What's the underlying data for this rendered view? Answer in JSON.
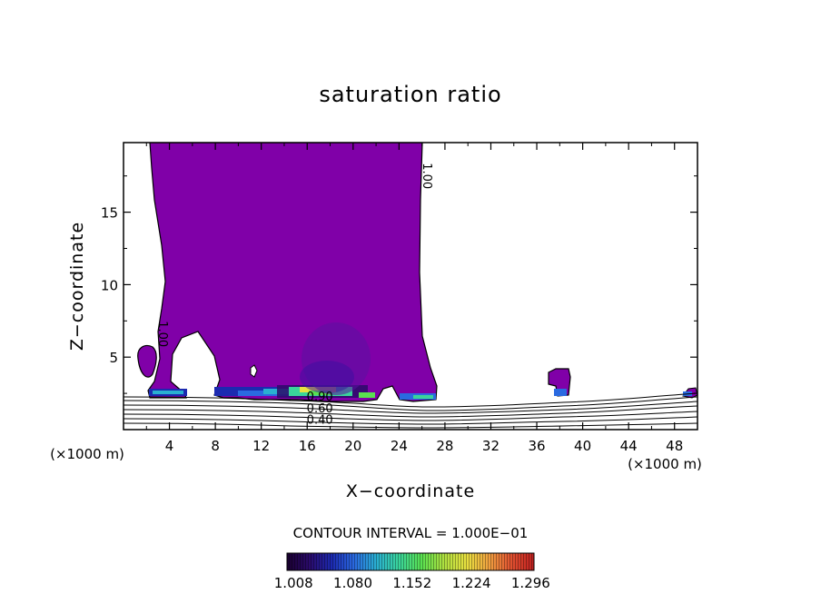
{
  "chart_data": {
    "type": "heatmap",
    "title": "saturation ratio",
    "xlabel": "X−coordinate",
    "ylabel": "Z−coordinate",
    "x_unit_label": "(×1000 m)",
    "z_unit_label": "(×1000 m)",
    "xlim": [
      0,
      50
    ],
    "ylim": [
      0,
      19.8
    ],
    "x_ticks": [
      4,
      8,
      12,
      16,
      20,
      24,
      28,
      32,
      36,
      40,
      44,
      48
    ],
    "y_ticks": [
      5,
      10,
      15
    ],
    "contour_interval_text": "CONTOUR INTERVAL = 1.000E−01",
    "contour_labels": [
      {
        "text": "1.00",
        "x": 26.1,
        "z": 17.5,
        "rotation": 90
      },
      {
        "text": "1.00",
        "x": 3.1,
        "z": 6.6,
        "rotation": 90
      },
      {
        "text": "0.90",
        "x": 17.1,
        "z": 2.0,
        "rotation": 0
      },
      {
        "text": "0.60",
        "x": 17.1,
        "z": 1.2,
        "rotation": 0
      },
      {
        "text": "0.40",
        "x": 17.1,
        "z": 0.4,
        "rotation": 0
      }
    ],
    "colorbar": {
      "labels": [
        "1.008",
        "1.080",
        "1.152",
        "1.224",
        "1.296"
      ],
      "range": [
        1.0,
        1.3
      ],
      "colors": [
        "#1a0030",
        "#2a0a6a",
        "#1c2ab0",
        "#2a6ae0",
        "#2ab0d0",
        "#3ad49a",
        "#5ae050",
        "#b0e040",
        "#e8e040",
        "#f0a040",
        "#e05030",
        "#c02020"
      ]
    },
    "fill_color": "#8000a8",
    "line_color": "#000000"
  }
}
